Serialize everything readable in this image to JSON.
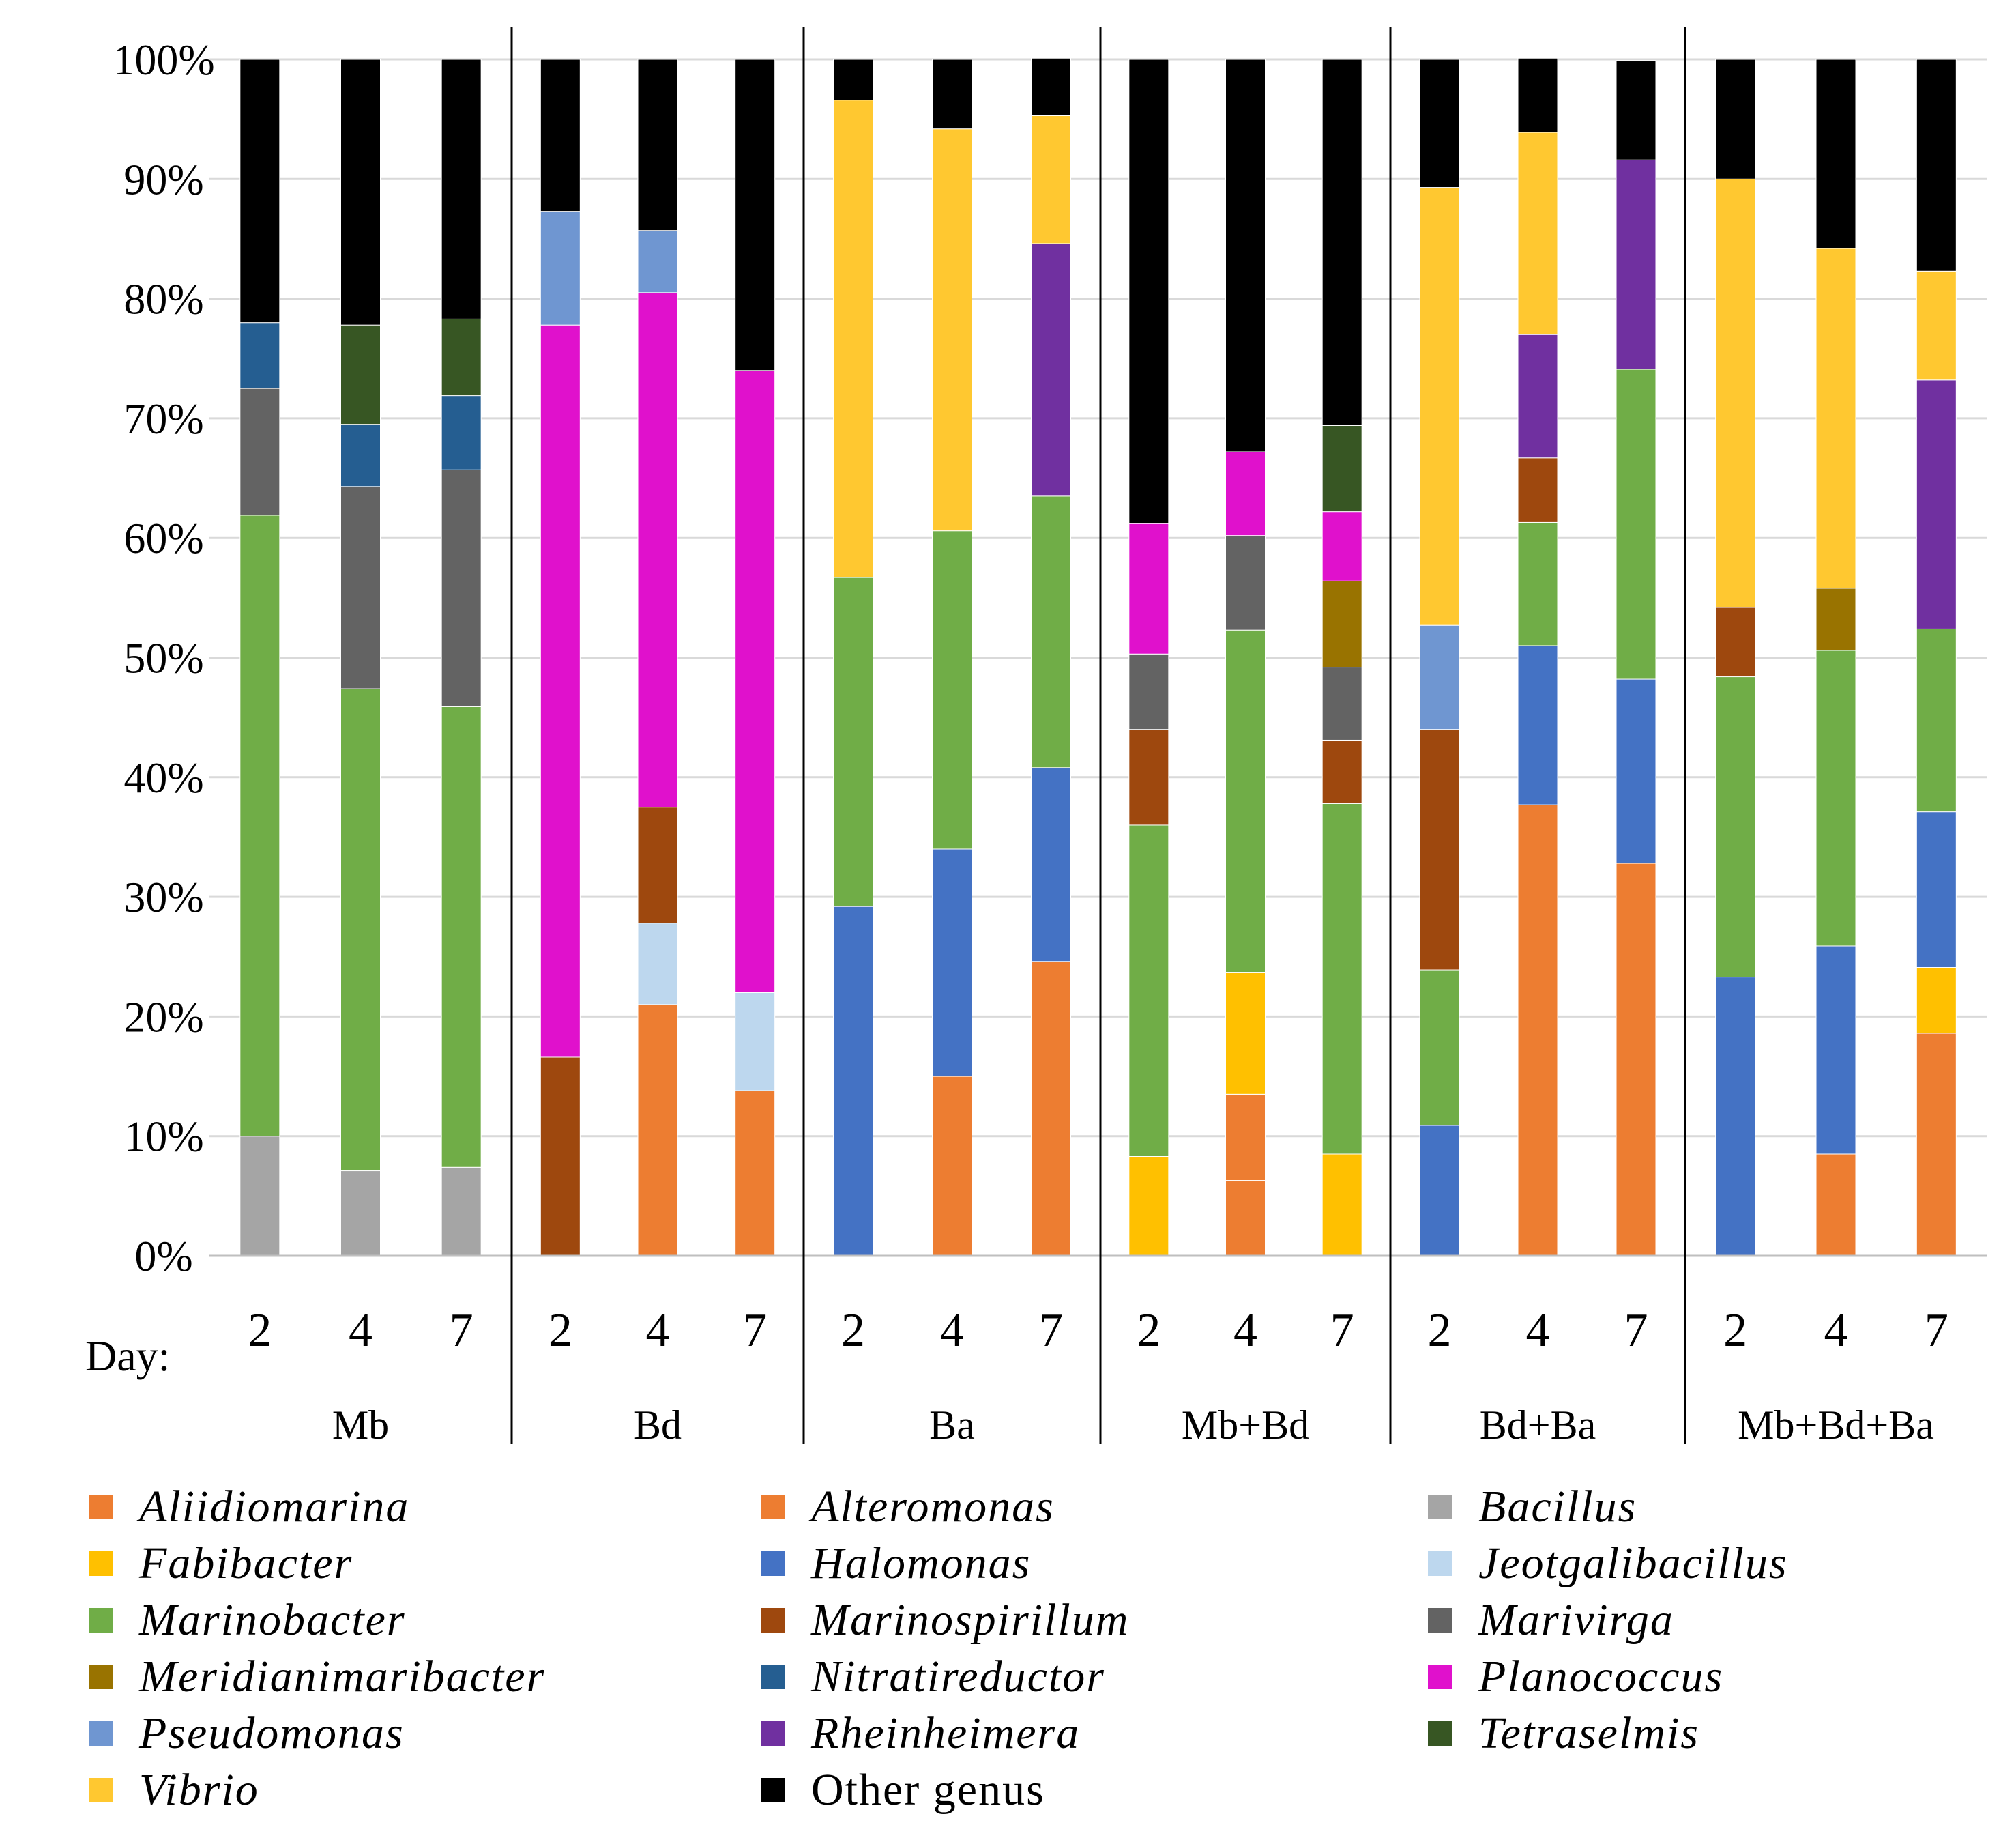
{
  "chart_data": {
    "type": "stacked-bar-100",
    "title": "",
    "xlabel_prefix": "Day:",
    "ylabel": "",
    "ylim": [
      0,
      100
    ],
    "y_ticks": [
      "0%",
      "10%",
      "20%",
      "30%",
      "40%",
      "50%",
      "60%",
      "70%",
      "80%",
      "90%",
      "100%"
    ],
    "gridlines": true,
    "groups": [
      "Mb",
      "Bd",
      "Ba",
      "Mb+Bd",
      "Bd+Ba",
      "Mb+Bd+Ba"
    ],
    "days": [
      "2",
      "4",
      "7"
    ],
    "legend_position": "bottom",
    "series": [
      {
        "name": "Aliidiomarina",
        "italic": true,
        "color": "#ED7D31",
        "values": [
          0,
          0,
          0,
          0,
          0,
          0,
          0,
          0,
          0,
          0,
          6.3,
          0,
          0,
          0,
          0,
          0,
          0,
          0
        ]
      },
      {
        "name": "Alteromonas",
        "italic": true,
        "color": "#ED7D31",
        "values": [
          0,
          0,
          0,
          0,
          21,
          13.8,
          0,
          15,
          24.6,
          0,
          7.2,
          0,
          0,
          37.7,
          32.8,
          0,
          8.5,
          18.6
        ]
      },
      {
        "name": "Bacillus",
        "italic": true,
        "color": "#A5A5A5",
        "values": [
          10,
          7.1,
          7.4,
          0,
          0,
          0,
          0,
          0,
          0,
          0,
          0,
          0,
          0,
          0,
          0,
          0,
          0,
          0
        ]
      },
      {
        "name": "Fabibacter",
        "italic": true,
        "color": "#FFC000",
        "values": [
          0,
          0,
          0,
          0,
          0,
          0,
          0,
          0,
          0,
          8.3,
          10.2,
          8.5,
          0,
          0,
          0,
          0,
          0,
          5.5
        ]
      },
      {
        "name": "Halomonas",
        "italic": true,
        "color": "#4472C4",
        "values": [
          0,
          0,
          0,
          0,
          0,
          0,
          29.2,
          19,
          16.2,
          0,
          0,
          0,
          10.9,
          13.3,
          15.4,
          23.3,
          17.4,
          13
        ]
      },
      {
        "name": "Jeotgalibacillus",
        "italic": true,
        "color": "#BDD7EE",
        "values": [
          0,
          0,
          0,
          0,
          6.8,
          8.2,
          0,
          0,
          0,
          0,
          0,
          0,
          0,
          0,
          0,
          0,
          0,
          0
        ]
      },
      {
        "name": "Marinobacter",
        "italic": true,
        "color": "#70AD47",
        "values": [
          51.9,
          40.3,
          38.5,
          0,
          0,
          0,
          27.5,
          26.6,
          22.7,
          27.7,
          28.6,
          29.3,
          13,
          10.3,
          25.9,
          25.1,
          24.7,
          15.3
        ]
      },
      {
        "name": "Marinospirillum",
        "italic": true,
        "color": "#9E480E",
        "values": [
          0,
          0,
          0,
          16.6,
          9.7,
          0,
          0,
          0,
          0,
          8,
          0,
          5.3,
          20.1,
          5.4,
          0,
          5.8,
          0,
          0
        ]
      },
      {
        "name": "Marivirga",
        "italic": true,
        "color": "#636363",
        "values": [
          10.6,
          16.9,
          19.8,
          0,
          0,
          0,
          0,
          0,
          0,
          6.3,
          7.9,
          6.1,
          0,
          0,
          0,
          0,
          0,
          0
        ]
      },
      {
        "name": "Meridianimaribacter",
        "italic": true,
        "color": "#997300",
        "values": [
          0,
          0,
          0,
          0,
          0,
          0,
          0,
          0,
          0,
          0,
          0,
          7.2,
          0,
          0,
          0,
          0,
          5.2,
          0
        ]
      },
      {
        "name": "Nitratireductor",
        "italic": true,
        "color": "#255E91",
        "values": [
          5.5,
          5.2,
          6.2,
          0,
          0,
          0,
          0,
          0,
          0,
          0,
          0,
          0,
          0,
          0,
          0,
          0,
          0,
          0
        ]
      },
      {
        "name": "Planococcus",
        "italic": true,
        "color": "#E011CC",
        "values": [
          0,
          0,
          0,
          61.2,
          43,
          52,
          0,
          0,
          0,
          10.9,
          7,
          5.8,
          0,
          0,
          0,
          0,
          0,
          0
        ]
      },
      {
        "name": "Pseudomonas",
        "italic": true,
        "color": "#6F96D1",
        "values": [
          0,
          0,
          0,
          9.5,
          5.2,
          0,
          0,
          0,
          0,
          0,
          0,
          0,
          8.7,
          0,
          0,
          0,
          0,
          0
        ]
      },
      {
        "name": "Rheinheimera",
        "italic": true,
        "color": "#7030A0",
        "values": [
          0,
          0,
          0,
          0,
          0,
          0,
          0,
          0,
          21.1,
          0,
          0,
          0,
          0,
          10.3,
          17.5,
          0,
          0,
          20.8
        ]
      },
      {
        "name": "Tetraselmis",
        "italic": true,
        "color": "#375623",
        "values": [
          0,
          8.3,
          6.4,
          0,
          0,
          0,
          0,
          0,
          0,
          0,
          0,
          7.2,
          0,
          0,
          0,
          0,
          0,
          0
        ]
      },
      {
        "name": "Vibrio",
        "italic": true,
        "color": "#FFC830",
        "values": [
          0,
          0,
          0,
          0,
          0,
          0,
          39.9,
          33.6,
          10.7,
          0,
          0,
          0,
          36.6,
          16.9,
          0,
          35.8,
          28.4,
          9.1
        ]
      },
      {
        "name": "Other genus",
        "italic": false,
        "color": "#000000",
        "values": [
          22,
          22.2,
          21.7,
          12.7,
          14.3,
          26,
          3.4,
          5.8,
          4.8,
          38.8,
          32.8,
          30.6,
          10.7,
          6.2,
          8.3,
          10,
          15.8,
          17.7
        ]
      }
    ]
  }
}
